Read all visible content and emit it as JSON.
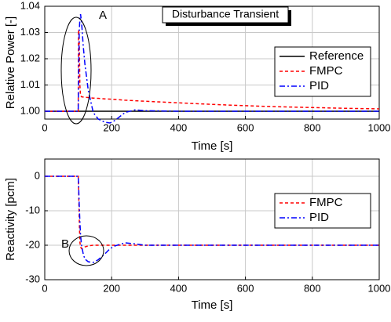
{
  "chart_data": [
    {
      "type": "line",
      "title": "Disturbance Transient",
      "x_label": "Time [s]",
      "y_label": "Relative Power [-]",
      "annotations": [
        "A"
      ],
      "grid": true,
      "legend": "right",
      "xlim": [
        0,
        1000
      ],
      "xticks": [
        0,
        200,
        400,
        600,
        800,
        1000
      ],
      "ylim": [
        0.997,
        1.04
      ],
      "yticks": [
        {
          "value": 1,
          "label": "1.00"
        },
        {
          "value": 1.01,
          "label": "1.01"
        },
        {
          "value": 1.02,
          "label": "1.02"
        },
        {
          "value": 1.03,
          "label": "1.03"
        },
        {
          "value": 1.04,
          "label": "1.04"
        }
      ],
      "x": [
        0,
        100,
        101,
        103,
        105,
        107,
        110,
        115,
        120,
        130,
        145,
        160,
        180,
        195,
        210,
        240,
        270,
        300,
        400,
        500,
        600,
        700,
        800,
        900,
        1000
      ],
      "series": [
        {
          "name": "Reference",
          "color": "#000000",
          "linestyle": "solid",
          "values": [
            1,
            1,
            1,
            1,
            1,
            1,
            1,
            1,
            1,
            1,
            1,
            1,
            1,
            1,
            1,
            1,
            1,
            1,
            1,
            1,
            1,
            1,
            1,
            1,
            1
          ]
        },
        {
          "name": "FMPC",
          "color": "#ff0000",
          "linestyle": "dashed",
          "values": [
            1,
            1,
            1.031,
            1.028,
            1.01,
            1.006,
            1.0055,
            1.0054,
            1.0053,
            1.0052,
            1.005,
            1.0049,
            1.0047,
            1.0046,
            1.0045,
            1.0042,
            1.004,
            1.0038,
            1.0032,
            1.0026,
            1.0021,
            1.0017,
            1.0014,
            1.0011,
            1.0009
          ]
        },
        {
          "name": "PID",
          "color": "#0000ff",
          "linestyle": "dashdot",
          "values": [
            1,
            1,
            1.01,
            1.03,
            1.035,
            1.037,
            1.034,
            1.025,
            1.018,
            1.008,
            0.9995,
            0.997,
            0.9958,
            0.9955,
            0.9965,
            0.9995,
            1.0005,
            1.0002,
            1,
            1,
            1,
            1,
            1,
            1,
            1
          ]
        }
      ]
    },
    {
      "type": "line",
      "x_label": "Time [s]",
      "y_label": "Reactivity [pcm]",
      "annotations": [
        "B"
      ],
      "grid": true,
      "legend": "right",
      "xlim": [
        0,
        1000
      ],
      "xticks": [
        0,
        200,
        400,
        600,
        800,
        1000
      ],
      "ylim": [
        -30,
        5
      ],
      "yticks": [
        -30,
        -20,
        -10,
        0
      ],
      "x": [
        0,
        100,
        101,
        103,
        105,
        107,
        110,
        115,
        120,
        130,
        145,
        160,
        180,
        195,
        210,
        240,
        270,
        300,
        400,
        500,
        600,
        700,
        800,
        900,
        1000
      ],
      "series": [
        {
          "name": "FMPC",
          "color": "#ff0000",
          "linestyle": "dashed",
          "values": [
            0,
            0,
            -3,
            -12,
            -19,
            -20.5,
            -21,
            -20.8,
            -20.5,
            -20.2,
            -20,
            -20,
            -20,
            -20,
            -20,
            -20,
            -20,
            -20,
            -20,
            -20,
            -20,
            -20,
            -20,
            -20,
            -20
          ]
        },
        {
          "name": "PID",
          "color": "#0000ff",
          "linestyle": "dashdot",
          "values": [
            0,
            0,
            -2,
            -8,
            -13,
            -17,
            -20,
            -22.5,
            -24,
            -24.8,
            -25,
            -24.2,
            -22.5,
            -21,
            -20.2,
            -19.3,
            -19.6,
            -20,
            -20,
            -20,
            -20,
            -20,
            -20,
            -20,
            -20
          ]
        }
      ]
    }
  ]
}
